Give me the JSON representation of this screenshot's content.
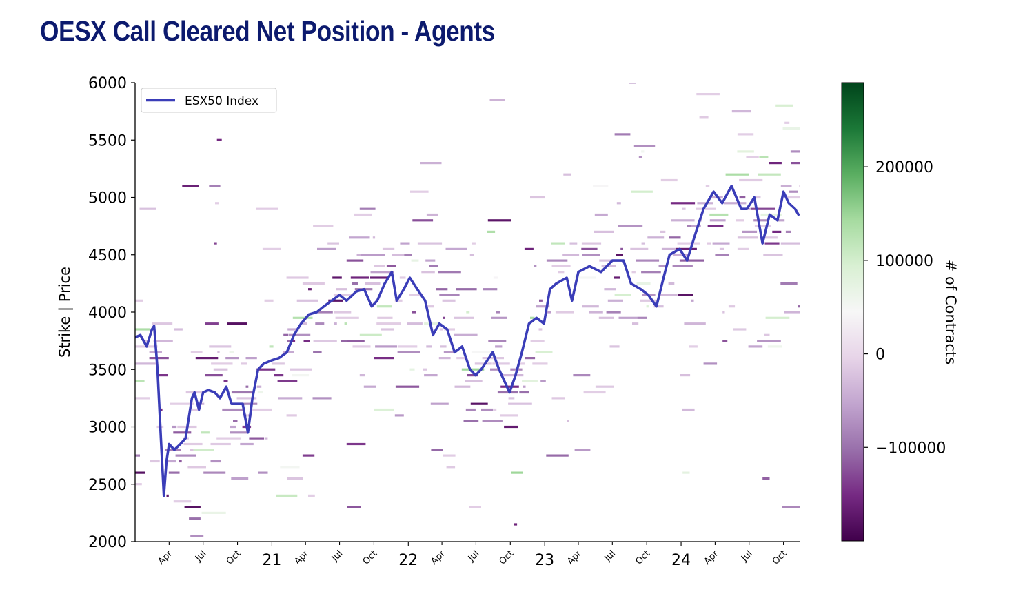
{
  "title": "OESX Call Cleared Net Position - Agents",
  "chart_data": {
    "type": "heatmap",
    "title": "OESX Call Cleared Net Position - Agents",
    "xlabel": "",
    "ylabel": "Strike | Price",
    "ylim": [
      2000,
      6000
    ],
    "yticks": [
      2000,
      2500,
      3000,
      3500,
      4000,
      4500,
      5000,
      5500,
      6000
    ],
    "xlim": [
      "2020-01-01",
      "2024-11-15"
    ],
    "xticks": [
      {
        "date": "2020-04-01",
        "label": "Apr",
        "major": false
      },
      {
        "date": "2020-07-01",
        "label": "Jul",
        "major": false
      },
      {
        "date": "2020-10-01",
        "label": "Oct",
        "major": false
      },
      {
        "date": "2021-01-01",
        "label": "21",
        "major": true
      },
      {
        "date": "2021-04-01",
        "label": "Apr",
        "major": false
      },
      {
        "date": "2021-07-01",
        "label": "Jul",
        "major": false
      },
      {
        "date": "2021-10-01",
        "label": "Oct",
        "major": false
      },
      {
        "date": "2022-01-01",
        "label": "22",
        "major": true
      },
      {
        "date": "2022-04-01",
        "label": "Apr",
        "major": false
      },
      {
        "date": "2022-07-01",
        "label": "Jul",
        "major": false
      },
      {
        "date": "2022-10-01",
        "label": "Oct",
        "major": false
      },
      {
        "date": "2023-01-01",
        "label": "23",
        "major": true
      },
      {
        "date": "2023-04-01",
        "label": "Apr",
        "major": false
      },
      {
        "date": "2023-07-01",
        "label": "Jul",
        "major": false
      },
      {
        "date": "2023-10-01",
        "label": "Oct",
        "major": false
      },
      {
        "date": "2024-01-01",
        "label": "24",
        "major": true
      },
      {
        "date": "2024-04-01",
        "label": "Apr",
        "major": false
      },
      {
        "date": "2024-07-01",
        "label": "Jul",
        "major": false
      },
      {
        "date": "2024-10-01",
        "label": "Oct",
        "major": false
      }
    ],
    "legend": {
      "position": "upper-left",
      "entries": [
        {
          "name": "ESX50 Index",
          "color": "#3a3db8"
        }
      ]
    },
    "colorbar": {
      "label": "# of Contracts",
      "range": [
        -200000,
        290000
      ],
      "ticks": [
        -100000,
        0,
        100000,
        200000
      ],
      "tick_labels": [
        "−100000",
        "0",
        "100000",
        "200000"
      ],
      "colormap": "PRGn",
      "stops": [
        "#40004b",
        "#762a83",
        "#9970ab",
        "#c2a5cf",
        "#e7d4e8",
        "#f7f7f7",
        "#d9f0d3",
        "#a6dba0",
        "#5aae61",
        "#1b7837",
        "#00441b"
      ]
    },
    "series": [
      {
        "name": "ESX50 Index",
        "type": "line",
        "color": "#3a3db8",
        "x": [
          "2020-01-01",
          "2020-01-15",
          "2020-02-01",
          "2020-02-15",
          "2020-02-21",
          "2020-03-01",
          "2020-03-10",
          "2020-03-18",
          "2020-03-25",
          "2020-04-01",
          "2020-04-15",
          "2020-05-01",
          "2020-05-15",
          "2020-06-01",
          "2020-06-08",
          "2020-06-20",
          "2020-07-01",
          "2020-07-15",
          "2020-08-01",
          "2020-08-15",
          "2020-09-01",
          "2020-09-15",
          "2020-10-01",
          "2020-10-15",
          "2020-10-29",
          "2020-11-10",
          "2020-11-25",
          "2020-12-10",
          "2021-01-01",
          "2021-01-20",
          "2021-02-10",
          "2021-03-01",
          "2021-03-20",
          "2021-04-10",
          "2021-05-01",
          "2021-05-20",
          "2021-06-10",
          "2021-07-01",
          "2021-07-20",
          "2021-08-15",
          "2021-09-05",
          "2021-09-25",
          "2021-10-10",
          "2021-10-30",
          "2021-11-18",
          "2021-12-01",
          "2021-12-20",
          "2022-01-05",
          "2022-01-25",
          "2022-02-15",
          "2022-03-08",
          "2022-03-25",
          "2022-04-15",
          "2022-05-05",
          "2022-05-25",
          "2022-06-15",
          "2022-06-30",
          "2022-07-15",
          "2022-08-15",
          "2022-09-01",
          "2022-09-29",
          "2022-10-15",
          "2022-11-01",
          "2022-11-20",
          "2022-12-10",
          "2022-12-30",
          "2023-01-15",
          "2023-02-01",
          "2023-03-01",
          "2023-03-15",
          "2023-04-01",
          "2023-05-01",
          "2023-06-01",
          "2023-07-01",
          "2023-07-31",
          "2023-08-20",
          "2023-09-15",
          "2023-10-05",
          "2023-10-27",
          "2023-11-15",
          "2023-12-01",
          "2023-12-28",
          "2024-01-17",
          "2024-02-10",
          "2024-03-01",
          "2024-03-28",
          "2024-04-20",
          "2024-05-15",
          "2024-06-10",
          "2024-06-25",
          "2024-07-15",
          "2024-08-06",
          "2024-08-25",
          "2024-09-15",
          "2024-10-01",
          "2024-10-15",
          "2024-11-01",
          "2024-11-10"
        ],
        "y": [
          3780,
          3800,
          3700,
          3850,
          3880,
          3500,
          2900,
          2400,
          2700,
          2850,
          2800,
          2850,
          2900,
          3250,
          3300,
          3150,
          3300,
          3320,
          3300,
          3250,
          3350,
          3200,
          3200,
          3200,
          2950,
          3250,
          3500,
          3550,
          3580,
          3600,
          3650,
          3800,
          3900,
          3980,
          4000,
          4050,
          4100,
          4150,
          4100,
          4180,
          4200,
          4050,
          4100,
          4250,
          4350,
          4100,
          4200,
          4300,
          4200,
          4100,
          3800,
          3900,
          3850,
          3650,
          3700,
          3500,
          3450,
          3500,
          3650,
          3500,
          3300,
          3450,
          3650,
          3900,
          3950,
          3900,
          4200,
          4250,
          4300,
          4100,
          4350,
          4400,
          4350,
          4450,
          4450,
          4250,
          4200,
          4150,
          4050,
          4300,
          4500,
          4550,
          4450,
          4700,
          4900,
          5050,
          4950,
          5100,
          4900,
          4900,
          5000,
          4600,
          4850,
          4800,
          5050,
          4950,
          4900,
          4850
        ]
      }
    ]
  }
}
